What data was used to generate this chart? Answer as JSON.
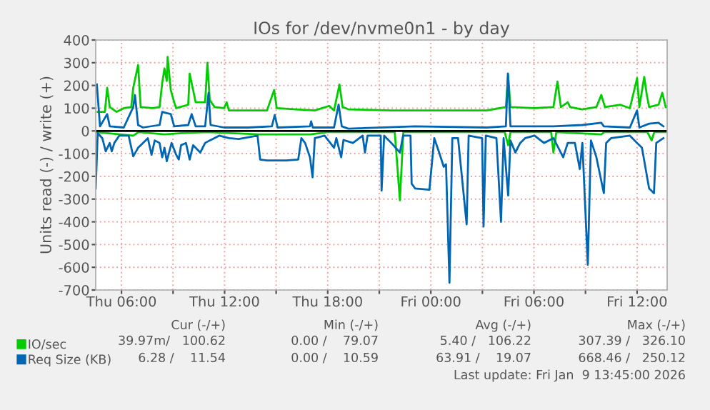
{
  "chart_data": {
    "type": "line",
    "title": "IOs for /dev/nvme0n1 - by day",
    "ylabel": "Units read (-) / write (+)",
    "xlim": [
      "2026-01-08T04:30",
      "2026-01-09T13:45"
    ],
    "ylim": [
      -700,
      400
    ],
    "xticks": [
      {
        "value": "2026-01-08T06:00",
        "label": "Thu 06:00"
      },
      {
        "value": "2026-01-08T09:00",
        "label": null
      },
      {
        "value": "2026-01-08T12:00",
        "label": "Thu 12:00"
      },
      {
        "value": "2026-01-08T15:00",
        "label": null
      },
      {
        "value": "2026-01-08T18:00",
        "label": "Thu 18:00"
      },
      {
        "value": "2026-01-08T21:00",
        "label": null
      },
      {
        "value": "2026-01-09T00:00",
        "label": "Fri 00:00"
      },
      {
        "value": "2026-01-09T03:00",
        "label": null
      },
      {
        "value": "2026-01-09T06:00",
        "label": "Fri 06:00"
      },
      {
        "value": "2026-01-09T09:00",
        "label": null
      },
      {
        "value": "2026-01-09T12:00",
        "label": "Fri 12:00"
      }
    ],
    "yticks": [
      -700,
      -600,
      -500,
      -400,
      -300,
      -200,
      -100,
      0,
      100,
      200,
      300,
      400
    ],
    "grid": true,
    "legend": "bottom left",
    "ref_lines": [
      {
        "axis": "y",
        "value": 0,
        "color": "#000000"
      }
    ],
    "series": [
      {
        "name": "IO/sec",
        "color": "#00cc00",
        "x": [
          "2026-01-08T04:37",
          "2026-01-08T05:02",
          "2026-01-08T05:10",
          "2026-01-08T05:19",
          "2026-01-08T05:43",
          "2026-01-08T06:08",
          "2026-01-08T06:34",
          "2026-01-08T06:41",
          "2026-01-08T06:58",
          "2026-01-08T07:07",
          "2026-01-08T07:49",
          "2026-01-08T08:13",
          "2026-01-08T08:22",
          "2026-01-08T08:30",
          "2026-01-08T08:38",
          "2026-01-08T08:41",
          "2026-01-08T08:52",
          "2026-01-08T09:04",
          "2026-01-08T09:11",
          "2026-01-08T09:53",
          "2026-01-08T09:58",
          "2026-01-08T10:10",
          "2026-01-08T10:19",
          "2026-01-08T10:52",
          "2026-01-08T11:00",
          "2026-01-08T11:08",
          "2026-01-08T11:25",
          "2026-01-08T11:58",
          "2026-01-08T12:07",
          "2026-01-08T12:15",
          "2026-01-08T13:22",
          "2026-01-08T14:28",
          "2026-01-08T14:53",
          "2026-01-08T15:02",
          "2026-01-08T16:08",
          "2026-01-08T17:15",
          "2026-01-08T18:05",
          "2026-01-08T18:22",
          "2026-01-08T18:41",
          "2026-01-08T18:52",
          "2026-01-08T19:12",
          "2026-01-08T21:42",
          "2026-01-09T00:30",
          "2026-01-09T03:15",
          "2026-01-09T04:22",
          "2026-01-09T04:30",
          "2026-01-09T04:38",
          "2026-01-09T06:02",
          "2026-01-09T07:08",
          "2026-01-09T07:22",
          "2026-01-09T07:34",
          "2026-01-09T07:58",
          "2026-01-09T08:06",
          "2026-01-09T08:48",
          "2026-01-09T09:38",
          "2026-01-09T09:55",
          "2026-01-09T10:08",
          "2026-01-09T11:02",
          "2026-01-09T11:35",
          "2026-01-09T12:00",
          "2026-01-09T12:08",
          "2026-01-09T12:25",
          "2026-01-09T12:34",
          "2026-01-09T12:42",
          "2026-01-09T13:15",
          "2026-01-09T13:28",
          "2026-01-09T13:40"
        ],
        "values": [
          84,
          84,
          190,
          105,
          84,
          100,
          105,
          190,
          290,
          105,
          100,
          105,
          210,
          275,
          220,
          326,
          180,
          126,
          100,
          115,
          252,
          180,
          126,
          126,
          300,
          137,
          105,
          100,
          126,
          90,
          90,
          90,
          180,
          100,
          95,
          90,
          110,
          90,
          204,
          105,
          95,
          90,
          90,
          90,
          105,
          246,
          105,
          100,
          105,
          217,
          105,
          126,
          105,
          95,
          105,
          158,
          105,
          115,
          100,
          232,
          105,
          238,
          158,
          105,
          115,
          168,
          105
        ]
      },
      {
        "color": "#00cc00",
        "x": [
          "2026-01-08T04:30",
          "2026-01-08T06:41",
          "2026-01-08T07:00",
          "2026-01-08T08:30",
          "2026-01-08T09:30",
          "2026-01-08T11:00",
          "2026-01-08T14:00",
          "2026-01-08T17:00",
          "2026-01-08T18:00",
          "2026-01-08T21:54",
          "2026-01-08T22:12",
          "2026-01-08T22:24",
          "2026-01-09T04:18",
          "2026-01-09T04:30",
          "2026-01-09T04:38",
          "2026-01-09T07:00",
          "2026-01-09T07:08",
          "2026-01-09T07:18",
          "2026-01-09T09:55",
          "2026-01-09T10:06",
          "2026-01-09T12:36",
          "2026-01-09T12:51",
          "2026-01-09T13:00",
          "2026-01-09T13:40"
        ],
        "values": [
          -5,
          -21,
          -5,
          -15,
          -10,
          -5,
          -15,
          -15,
          -5,
          -5,
          -305,
          -5,
          -5,
          -63,
          -5,
          -5,
          -95,
          -5,
          -15,
          -5,
          -5,
          -42,
          -5,
          -5
        ]
      },
      {
        "name": "Req Size (KB)",
        "color": "#0066b3",
        "x": [
          "2026-01-08T04:34",
          "2026-01-08T04:45",
          "2026-01-08T05:10",
          "2026-01-08T05:19",
          "2026-01-08T06:08",
          "2026-01-08T06:41",
          "2026-01-08T06:47",
          "2026-01-08T06:58",
          "2026-01-08T07:15",
          "2026-01-08T08:13",
          "2026-01-08T08:22",
          "2026-01-08T08:38",
          "2026-01-08T08:52",
          "2026-01-08T09:04",
          "2026-01-08T09:53",
          "2026-01-08T10:05",
          "2026-01-08T10:19",
          "2026-01-08T10:52",
          "2026-01-08T11:04",
          "2026-01-08T11:11",
          "2026-01-08T11:58",
          "2026-01-08T13:22",
          "2026-01-08T14:45",
          "2026-01-08T14:55",
          "2026-01-08T15:05",
          "2026-01-08T16:58",
          "2026-01-08T17:02",
          "2026-01-08T17:08",
          "2026-01-08T18:22",
          "2026-01-08T18:38",
          "2026-01-08T18:49",
          "2026-01-08T19:12",
          "2026-01-08T23:05",
          "2026-01-09T03:15",
          "2026-01-09T04:22",
          "2026-01-09T04:29",
          "2026-01-09T04:38",
          "2026-01-09T07:08",
          "2026-01-09T08:49",
          "2026-01-09T09:55",
          "2026-01-09T10:04",
          "2026-01-09T11:35",
          "2026-01-09T12:00",
          "2026-01-09T12:08",
          "2026-01-09T12:42",
          "2026-01-09T13:15",
          "2026-01-09T13:32"
        ],
        "values": [
          204,
          20,
          74,
          20,
          15,
          105,
          158,
          26,
          15,
          26,
          84,
          78,
          74,
          20,
          26,
          74,
          20,
          20,
          168,
          26,
          15,
          15,
          20,
          70,
          15,
          20,
          42,
          15,
          15,
          116,
          20,
          10,
          20,
          15,
          20,
          253,
          20,
          20,
          26,
          36,
          20,
          15,
          90,
          15,
          32,
          36,
          20
        ]
      },
      {
        "color": "#0066b3",
        "x": [
          "2026-01-08T04:30",
          "2026-01-08T04:37",
          "2026-01-08T04:53",
          "2026-01-08T05:05",
          "2026-01-08T05:19",
          "2026-01-08T05:26",
          "2026-01-08T05:35",
          "2026-01-08T05:52",
          "2026-01-08T06:25",
          "2026-01-08T06:41",
          "2026-01-08T06:58",
          "2026-01-08T07:15",
          "2026-01-08T07:32",
          "2026-01-08T07:45",
          "2026-01-08T07:56",
          "2026-01-08T08:13",
          "2026-01-08T08:22",
          "2026-01-08T08:30",
          "2026-01-08T08:38",
          "2026-01-08T08:55",
          "2026-01-08T09:11",
          "2026-01-08T09:20",
          "2026-01-08T09:28",
          "2026-01-08T09:45",
          "2026-01-08T09:58",
          "2026-01-08T10:10",
          "2026-01-08T10:35",
          "2026-01-08T10:52",
          "2026-01-08T11:08",
          "2026-01-08T11:41",
          "2026-01-08T12:15",
          "2026-01-08T12:49",
          "2026-01-08T13:55",
          "2026-01-08T14:04",
          "2026-01-08T14:28",
          "2026-01-08T15:35",
          "2026-01-08T16:17",
          "2026-01-08T16:28",
          "2026-01-08T16:41",
          "2026-01-08T16:58",
          "2026-01-08T17:07",
          "2026-01-08T17:15",
          "2026-01-08T17:49",
          "2026-01-08T18:22",
          "2026-01-08T18:30",
          "2026-01-08T18:47",
          "2026-01-08T18:55",
          "2026-01-08T19:28",
          "2026-01-08T20:02",
          "2026-01-08T20:10",
          "2026-01-08T20:19",
          "2026-01-08T21:05",
          "2026-01-08T21:08",
          "2026-01-08T21:17",
          "2026-01-08T21:42",
          "2026-01-08T22:12",
          "2026-01-08T22:23",
          "2026-01-08T22:49",
          "2026-01-08T22:53",
          "2026-01-08T23:05",
          "2026-01-08T23:55",
          "2026-01-09T00:12",
          "2026-01-09T00:29",
          "2026-01-09T00:45",
          "2026-01-09T00:53",
          "2026-01-09T01:05",
          "2026-01-09T01:15",
          "2026-01-09T01:35",
          "2026-01-09T02:05",
          "2026-01-09T02:12",
          "2026-01-09T02:59",
          "2026-01-09T03:04",
          "2026-01-09T03:12",
          "2026-01-09T03:49",
          "2026-01-09T04:05",
          "2026-01-09T04:14",
          "2026-01-09T04:30",
          "2026-01-09T04:38",
          "2026-01-09T04:55",
          "2026-01-09T05:12",
          "2026-01-09T05:29",
          "2026-01-09T06:02",
          "2026-01-09T06:35",
          "2026-01-09T07:08",
          "2026-01-09T07:42",
          "2026-01-09T07:58",
          "2026-01-09T08:23",
          "2026-01-09T08:40",
          "2026-01-09T08:49",
          "2026-01-09T09:08",
          "2026-01-09T09:19",
          "2026-01-09T09:38",
          "2026-01-09T10:04",
          "2026-01-09T10:12",
          "2026-01-09T10:29",
          "2026-01-09T11:35",
          "2026-01-09T12:00",
          "2026-01-09T12:17",
          "2026-01-09T12:42",
          "2026-01-09T12:59",
          "2026-01-09T13:07",
          "2026-01-09T13:32"
        ],
        "values": [
          -253,
          -10,
          -32,
          -90,
          -53,
          -90,
          -53,
          -21,
          -21,
          -112,
          -74,
          -53,
          -32,
          -105,
          -42,
          -53,
          -116,
          -74,
          -133,
          -53,
          -105,
          -126,
          -63,
          -53,
          -126,
          -63,
          -95,
          -53,
          -42,
          -21,
          -32,
          -36,
          -21,
          -126,
          -130,
          -130,
          -126,
          -32,
          -53,
          -116,
          -204,
          -32,
          -21,
          -74,
          -32,
          -116,
          -40,
          -53,
          -21,
          -95,
          -21,
          -21,
          -263,
          -21,
          -53,
          -95,
          -21,
          -21,
          -232,
          -253,
          -259,
          -32,
          -95,
          -158,
          -147,
          -668,
          -32,
          -32,
          -411,
          -21,
          -32,
          -421,
          -21,
          -32,
          -400,
          -32,
          -284,
          -42,
          -95,
          -53,
          -32,
          -21,
          -53,
          -32,
          -116,
          -53,
          -53,
          -168,
          -53,
          -589,
          -42,
          -116,
          -274,
          -53,
          -32,
          -21,
          -53,
          -74,
          -253,
          -274,
          -53,
          -32
        ]
      }
    ],
    "annotations": [
      "Cur (-/+)",
      "Min (-/+)",
      "Avg (-/+)",
      "Max (-/+)",
      "39.97m/   100.62",
      "0.00 /    79.07",
      "5.40 /   106.22",
      "307.39 /   326.10",
      "6.28 /    11.54",
      "0.00 /    10.59",
      "63.91 /    19.07",
      "668.46 /   250.12",
      "Last update: Fri Jan  9 13:45:00 2026"
    ]
  }
}
